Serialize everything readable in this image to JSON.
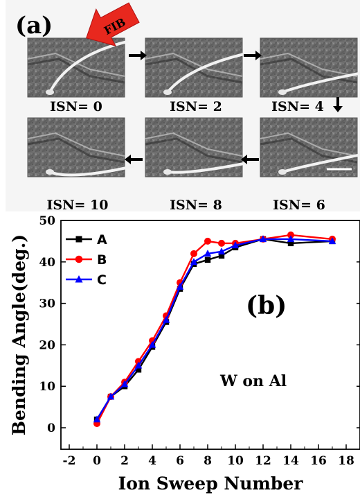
{
  "panel_a": {
    "label": "(a)",
    "fib_label": "FIB",
    "frames": [
      {
        "isn": "ISN= 0"
      },
      {
        "isn": "ISN= 2"
      },
      {
        "isn": "ISN= 4"
      },
      {
        "isn": "ISN= 6"
      },
      {
        "isn": "ISN= 8"
      },
      {
        "isn": "ISN= 10"
      }
    ]
  },
  "chart_data": {
    "type": "line",
    "panel_label": "(b)",
    "annotation": "W on Al",
    "xlabel": "Ion Sweep Number",
    "ylabel": "Bending Angle(deg.)",
    "xlim": [
      -2,
      18
    ],
    "ylim": [
      -5,
      50
    ],
    "xticks": [
      -2,
      0,
      2,
      4,
      6,
      8,
      10,
      12,
      14,
      16,
      18
    ],
    "yticks": [
      0,
      10,
      20,
      30,
      40,
      50
    ],
    "grid": false,
    "legend_position": "top-left",
    "series": [
      {
        "name": "A",
        "color": "#000000",
        "marker": "square",
        "x": [
          0,
          1,
          2,
          3,
          4,
          5,
          6,
          7,
          8,
          9,
          10,
          12,
          14,
          17
        ],
        "y": [
          2,
          7.5,
          10,
          14,
          19.5,
          25.5,
          33.5,
          39.5,
          40.5,
          41.5,
          43.5,
          45.5,
          44.5,
          45
        ]
      },
      {
        "name": "B",
        "color": "#ff0000",
        "marker": "circle",
        "x": [
          0,
          1,
          2,
          3,
          4,
          5,
          6,
          7,
          8,
          9,
          10,
          12,
          14,
          17
        ],
        "y": [
          1,
          7.5,
          11,
          16,
          21,
          27,
          35,
          42,
          45,
          44.5,
          44.5,
          45.5,
          46.5,
          45.5
        ]
      },
      {
        "name": "C",
        "color": "#0000ff",
        "marker": "triangle",
        "x": [
          0,
          1,
          2,
          3,
          4,
          5,
          6,
          7,
          8,
          9,
          10,
          12,
          14,
          17
        ],
        "y": [
          2,
          7.5,
          10.5,
          15,
          20,
          26,
          34,
          40,
          42,
          42.5,
          44,
          45.5,
          45.5,
          45
        ]
      }
    ]
  }
}
